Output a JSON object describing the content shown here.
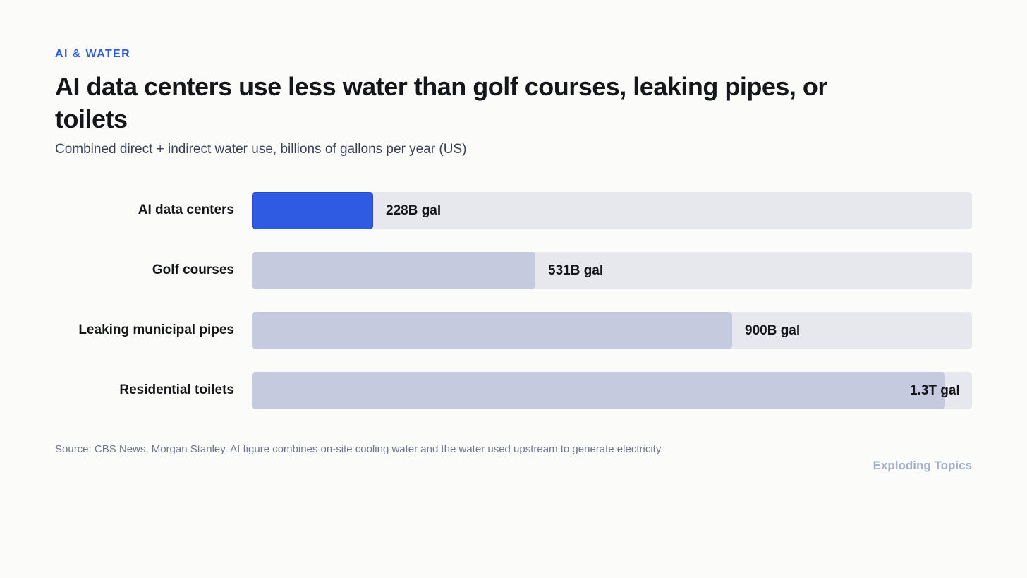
{
  "eyebrow": "AI & WATER",
  "title": "AI data centers use less water than golf courses, leaking pipes, or toilets",
  "subtitle": "Combined direct + indirect water use, billions of gallons per year (US)",
  "source": "Source: CBS News, Morgan Stanley. AI figure combines on-site cooling water and the water used upstream to generate electricity.",
  "brand": "Exploding Topics",
  "colors": {
    "highlight": "#2f5be3",
    "bar": "#c6cadf",
    "track": "#e7e8ed"
  },
  "chart_data": {
    "type": "bar",
    "orientation": "horizontal",
    "categories": [
      "AI data centers",
      "Golf courses",
      "Leaking municipal pipes",
      "Residential toilets"
    ],
    "values": [
      228,
      531,
      900,
      1300
    ],
    "value_labels": [
      "228B gal",
      "531B gal",
      "900B gal",
      "1.3T gal"
    ],
    "highlight_index": 0,
    "xlim": [
      0,
      1350
    ]
  }
}
